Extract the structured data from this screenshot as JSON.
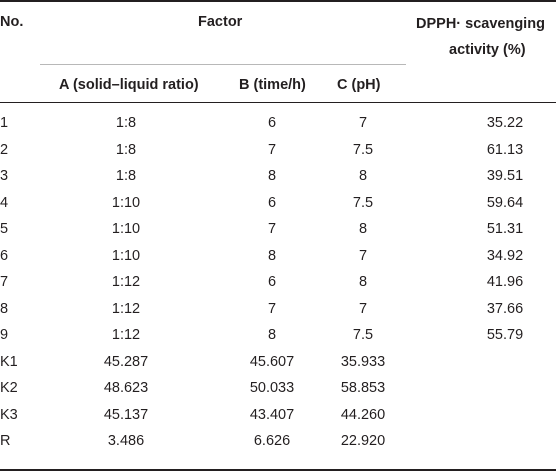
{
  "headers": {
    "no": "No.",
    "factor": "Factor",
    "dpph_line1": "DPPH· scavenging",
    "dpph_line2": "activity (%)",
    "a": "A (solid–liquid ratio)",
    "b": "B (time/h)",
    "c": "C (pH)"
  },
  "rows": [
    [
      "1",
      "1:8",
      "6",
      "7",
      "35.22"
    ],
    [
      "2",
      "1:8",
      "7",
      "7.5",
      "61.13"
    ],
    [
      "3",
      "1:8",
      "8",
      "8",
      "39.51"
    ],
    [
      "4",
      "1:10",
      "6",
      "7.5",
      "59.64"
    ],
    [
      "5",
      "1:10",
      "7",
      "8",
      "51.31"
    ],
    [
      "6",
      "1:10",
      "8",
      "7",
      "34.92"
    ],
    [
      "7",
      "1:12",
      "6",
      "8",
      "41.96"
    ],
    [
      "8",
      "1:12",
      "7",
      "7",
      "37.66"
    ],
    [
      "9",
      "1:12",
      "8",
      "7.5",
      "55.79"
    ],
    [
      "K1",
      "45.287",
      "45.607",
      "35.933",
      ""
    ],
    [
      "K2",
      "48.623",
      "50.033",
      "58.853",
      ""
    ],
    [
      "K3",
      "45.137",
      "43.407",
      "44.260",
      ""
    ],
    [
      "R",
      "3.486",
      "6.626",
      "22.920",
      ""
    ]
  ]
}
